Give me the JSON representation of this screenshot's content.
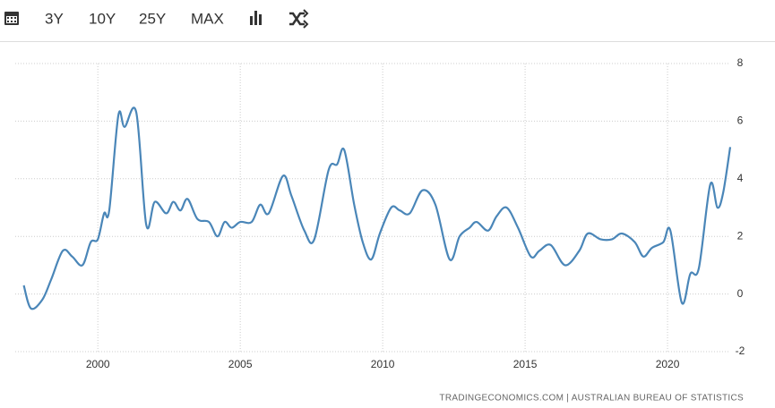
{
  "toolbar": {
    "buttons": [
      "3Y",
      "10Y",
      "25Y",
      "MAX"
    ]
  },
  "chart_data": {
    "type": "line",
    "color": "#4a86b8",
    "x": [
      1997.4,
      1997.65,
      1998.05,
      1998.36,
      1998.77,
      1999.1,
      1999.46,
      1999.75,
      2000,
      2000.22,
      2000.4,
      2000.72,
      2000.94,
      2001.35,
      2001.7,
      2002,
      2002.4,
      2002.65,
      2002.9,
      2003.15,
      2003.5,
      2003.9,
      2004.2,
      2004.45,
      2004.7,
      2005,
      2005.4,
      2005.7,
      2006,
      2006.5,
      2006.8,
      2007.25,
      2007.6,
      2008.1,
      2008.4,
      2008.65,
      2009,
      2009.3,
      2009.6,
      2009.9,
      2010.3,
      2010.6,
      2010.95,
      2011.4,
      2011.85,
      2012.35,
      2012.7,
      2013.05,
      2013.3,
      2013.7,
      2014,
      2014.35,
      2014.75,
      2015.2,
      2015.5,
      2015.9,
      2016.4,
      2016.9,
      2017.2,
      2017.65,
      2018.05,
      2018.4,
      2018.85,
      2019.15,
      2019.45,
      2019.85,
      2020.1,
      2020.5,
      2020.8,
      2021.1,
      2021.5,
      2021.75,
      2021.95,
      2022.2
    ],
    "values": [
      0.3,
      -0.5,
      -0.2,
      0.5,
      1.5,
      1.3,
      1.0,
      1.8,
      1.9,
      2.8,
      2.9,
      6.2,
      5.8,
      6.3,
      2.4,
      3.2,
      2.8,
      3.2,
      2.9,
      3.3,
      2.6,
      2.5,
      2.0,
      2.5,
      2.3,
      2.5,
      2.5,
      3.1,
      2.8,
      4.1,
      3.4,
      2.2,
      1.9,
      4.3,
      4.5,
      5.0,
      3.1,
      1.8,
      1.2,
      2.1,
      3.0,
      2.9,
      2.8,
      3.6,
      3.1,
      1.2,
      2.0,
      2.3,
      2.5,
      2.2,
      2.7,
      3.0,
      2.3,
      1.3,
      1.5,
      1.7,
      1.0,
      1.5,
      2.1,
      1.9,
      1.9,
      2.1,
      1.8,
      1.3,
      1.6,
      1.8,
      2.2,
      -0.3,
      0.7,
      0.9,
      3.8,
      3.0,
      3.5,
      5.1
    ],
    "xlim": [
      1997.1,
      2022.2
    ],
    "xticks": [
      2000,
      2005,
      2010,
      2015,
      2020
    ],
    "ylim": [
      -2,
      8
    ],
    "yticks": [
      -2,
      0,
      2,
      4,
      6,
      8
    ],
    "grid": true,
    "source": "TRADINGECONOMICS.COM  |  AUSTRALIAN BUREAU OF STATISTICS"
  }
}
